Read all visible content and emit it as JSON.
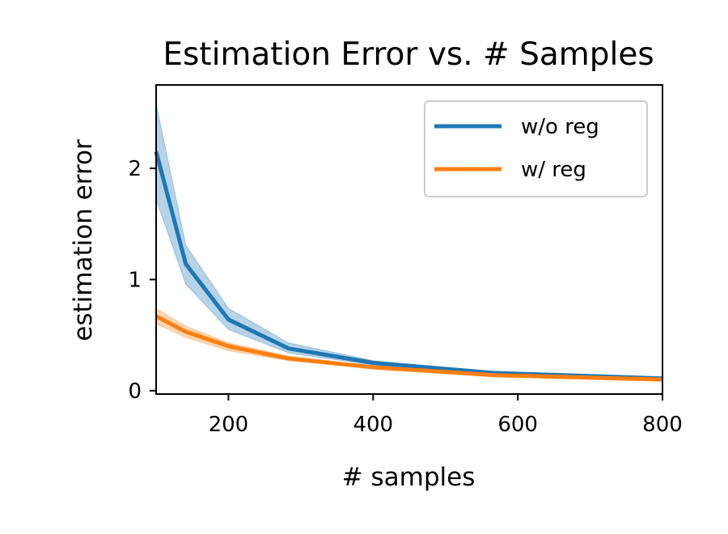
{
  "chart_data": {
    "type": "line",
    "title": "Estimation Error vs. # Samples",
    "xlabel": "# samples",
    "ylabel": "estimation error",
    "xlim": [
      100,
      800
    ],
    "ylim": [
      -0.03,
      2.75
    ],
    "xticks": [
      200,
      400,
      600,
      800
    ],
    "yticks": [
      0,
      1,
      2
    ],
    "grid": false,
    "legend_position": "top-right",
    "x": [
      100,
      141,
      200,
      283,
      400,
      566,
      800
    ],
    "series": [
      {
        "name": "w/o reg",
        "color": "#1f77b4",
        "values": [
          2.15,
          1.14,
          0.64,
          0.38,
          0.25,
          0.16,
          0.11
        ],
        "lower": [
          1.72,
          0.96,
          0.55,
          0.34,
          0.23,
          0.15,
          0.1
        ],
        "upper": [
          2.58,
          1.31,
          0.74,
          0.43,
          0.27,
          0.17,
          0.12
        ]
      },
      {
        "name": "w/ reg",
        "color": "#ff7f0e",
        "values": [
          0.67,
          0.53,
          0.4,
          0.29,
          0.21,
          0.14,
          0.1
        ],
        "lower": [
          0.6,
          0.48,
          0.36,
          0.27,
          0.2,
          0.13,
          0.09
        ],
        "upper": [
          0.74,
          0.58,
          0.43,
          0.31,
          0.22,
          0.15,
          0.11
        ]
      }
    ]
  }
}
